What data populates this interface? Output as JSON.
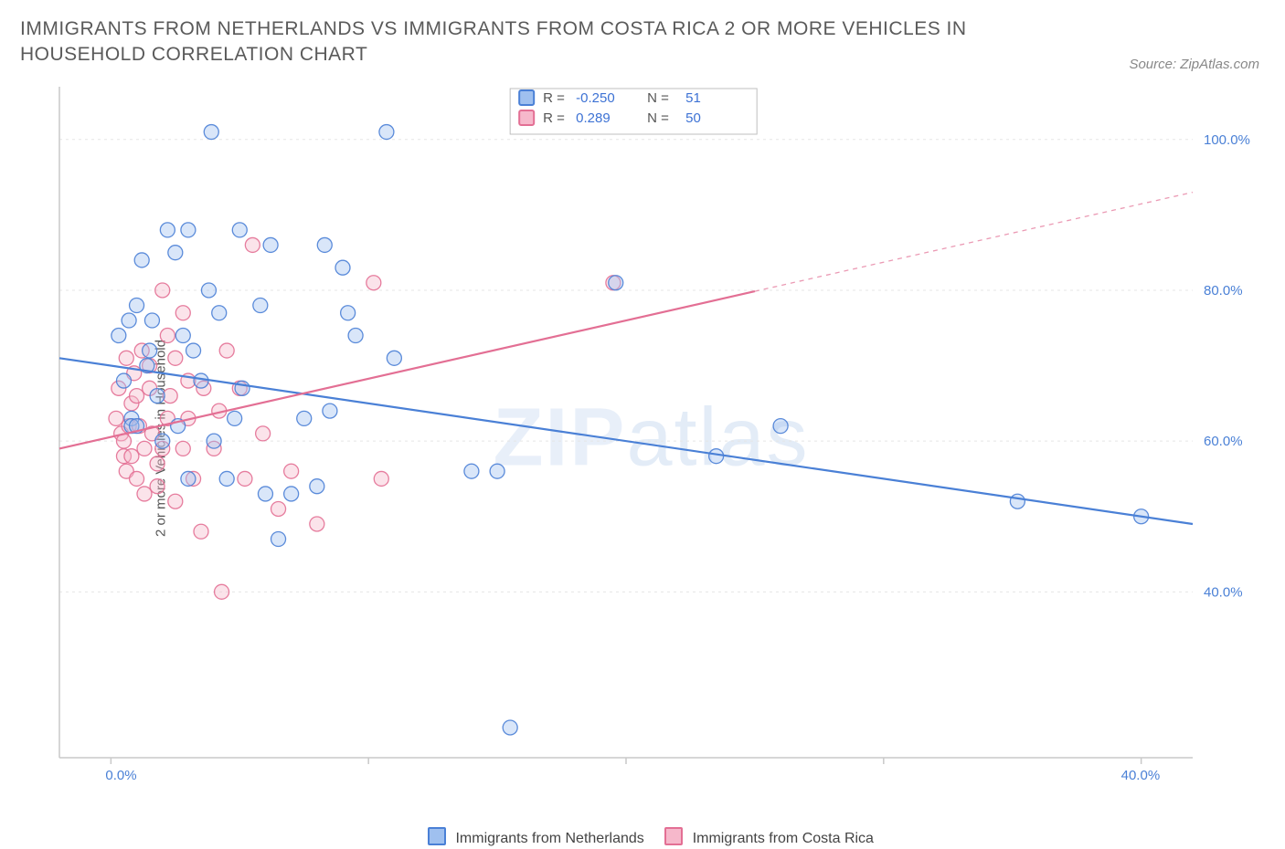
{
  "title": "IMMIGRANTS FROM NETHERLANDS VS IMMIGRANTS FROM COSTA RICA 2 OR MORE VEHICLES IN HOUSEHOLD CORRELATION CHART",
  "source": "Source: ZipAtlas.com",
  "ylabel": "2 or more Vehicles in Household",
  "watermark_a": "ZIP",
  "watermark_b": "atlas",
  "chart": {
    "type": "scatter",
    "xlim": [
      -2,
      42
    ],
    "ylim": [
      18,
      107
    ],
    "x_ticks": [
      0,
      10,
      20,
      30,
      40
    ],
    "x_tick_labels": [
      "0.0%",
      "",
      "",
      "",
      "40.0%"
    ],
    "y_ticks": [
      40,
      60,
      80,
      100
    ],
    "y_tick_labels": [
      "40.0%",
      "60.0%",
      "80.0%",
      "100.0%"
    ],
    "grid_color": "#e5e5e5",
    "grid_dash": "3,4",
    "axis_color": "#c9c9c9",
    "axis_label_color": "#4a80d6",
    "axis_label_fontsize": 15,
    "background_color": "#ffffff",
    "marker_radius": 8,
    "marker_opacity": 0.4,
    "marker_stroke_opacity": 0.9,
    "line_width": 2.2
  },
  "series": [
    {
      "name": "Immigrants from Netherlands",
      "color": "#4a80d6",
      "fill": "#9fc0ef",
      "R": "-0.250",
      "N": "51",
      "trend": {
        "x1": -2,
        "y1": 71,
        "x2": 42,
        "y2": 49,
        "solid_until_x": 42
      },
      "points": [
        [
          0.3,
          74
        ],
        [
          0.5,
          68
        ],
        [
          0.7,
          76
        ],
        [
          0.8,
          63
        ],
        [
          0.8,
          62
        ],
        [
          1.0,
          78
        ],
        [
          1.0,
          62
        ],
        [
          1.2,
          84
        ],
        [
          1.4,
          70
        ],
        [
          1.5,
          72
        ],
        [
          1.6,
          76
        ],
        [
          1.8,
          66
        ],
        [
          2.0,
          60
        ],
        [
          2.2,
          88
        ],
        [
          2.5,
          85
        ],
        [
          2.6,
          62
        ],
        [
          2.8,
          74
        ],
        [
          3.0,
          88
        ],
        [
          3.0,
          55
        ],
        [
          3.2,
          72
        ],
        [
          3.5,
          68
        ],
        [
          3.8,
          80
        ],
        [
          3.9,
          101
        ],
        [
          4.0,
          60
        ],
        [
          4.2,
          77
        ],
        [
          4.5,
          55
        ],
        [
          4.8,
          63
        ],
        [
          5.0,
          88
        ],
        [
          5.1,
          67
        ],
        [
          5.8,
          78
        ],
        [
          6.0,
          53
        ],
        [
          6.2,
          86
        ],
        [
          6.5,
          47
        ],
        [
          7.0,
          53
        ],
        [
          7.5,
          63
        ],
        [
          8.0,
          54
        ],
        [
          8.3,
          86
        ],
        [
          8.5,
          64
        ],
        [
          9.0,
          83
        ],
        [
          9.2,
          77
        ],
        [
          9.5,
          74
        ],
        [
          10.7,
          101
        ],
        [
          11.0,
          71
        ],
        [
          14.0,
          56
        ],
        [
          15.0,
          56
        ],
        [
          15.5,
          22
        ],
        [
          19.6,
          81
        ],
        [
          23.5,
          58
        ],
        [
          26.0,
          62
        ],
        [
          35.2,
          52
        ],
        [
          40.0,
          50
        ]
      ]
    },
    {
      "name": "Immigrants from Costa Rica",
      "color": "#e36f94",
      "fill": "#f6b8cb",
      "R": "0.289",
      "N": "50",
      "trend": {
        "x1": -2,
        "y1": 59,
        "x2": 42,
        "y2": 93,
        "solid_until_x": 25
      },
      "points": [
        [
          0.2,
          63
        ],
        [
          0.3,
          67
        ],
        [
          0.4,
          61
        ],
        [
          0.5,
          58
        ],
        [
          0.5,
          60
        ],
        [
          0.6,
          71
        ],
        [
          0.6,
          56
        ],
        [
          0.7,
          62
        ],
        [
          0.8,
          65
        ],
        [
          0.8,
          58
        ],
        [
          0.9,
          69
        ],
        [
          1.0,
          66
        ],
        [
          1.0,
          55
        ],
        [
          1.1,
          62
        ],
        [
          1.2,
          72
        ],
        [
          1.3,
          59
        ],
        [
          1.3,
          53
        ],
        [
          1.5,
          67
        ],
        [
          1.5,
          70
        ],
        [
          1.6,
          61
        ],
        [
          1.8,
          57
        ],
        [
          1.8,
          54
        ],
        [
          2.0,
          80
        ],
        [
          2.0,
          59
        ],
        [
          2.2,
          63
        ],
        [
          2.2,
          74
        ],
        [
          2.3,
          66
        ],
        [
          2.5,
          71
        ],
        [
          2.5,
          52
        ],
        [
          2.8,
          59
        ],
        [
          2.8,
          77
        ],
        [
          3.0,
          68
        ],
        [
          3.0,
          63
        ],
        [
          3.2,
          55
        ],
        [
          3.5,
          48
        ],
        [
          3.6,
          67
        ],
        [
          4.0,
          59
        ],
        [
          4.2,
          64
        ],
        [
          4.3,
          40
        ],
        [
          4.5,
          72
        ],
        [
          5.0,
          67
        ],
        [
          5.2,
          55
        ],
        [
          5.5,
          86
        ],
        [
          5.9,
          61
        ],
        [
          6.5,
          51
        ],
        [
          7.0,
          56
        ],
        [
          8.0,
          49
        ],
        [
          10.2,
          81
        ],
        [
          10.5,
          55
        ],
        [
          19.5,
          81
        ]
      ]
    }
  ],
  "legend_box": {
    "border_color": "#bfbfbf",
    "bg": "#ffffff",
    "R_label": "R =",
    "N_label": "N =",
    "value_color": "#3d72d4"
  },
  "bottom_legend": {
    "items": [
      {
        "label": "Immigrants from Netherlands",
        "color": "#4a80d6",
        "fill": "#9fc0ef"
      },
      {
        "label": "Immigrants from Costa Rica",
        "color": "#e36f94",
        "fill": "#f6b8cb"
      }
    ]
  }
}
